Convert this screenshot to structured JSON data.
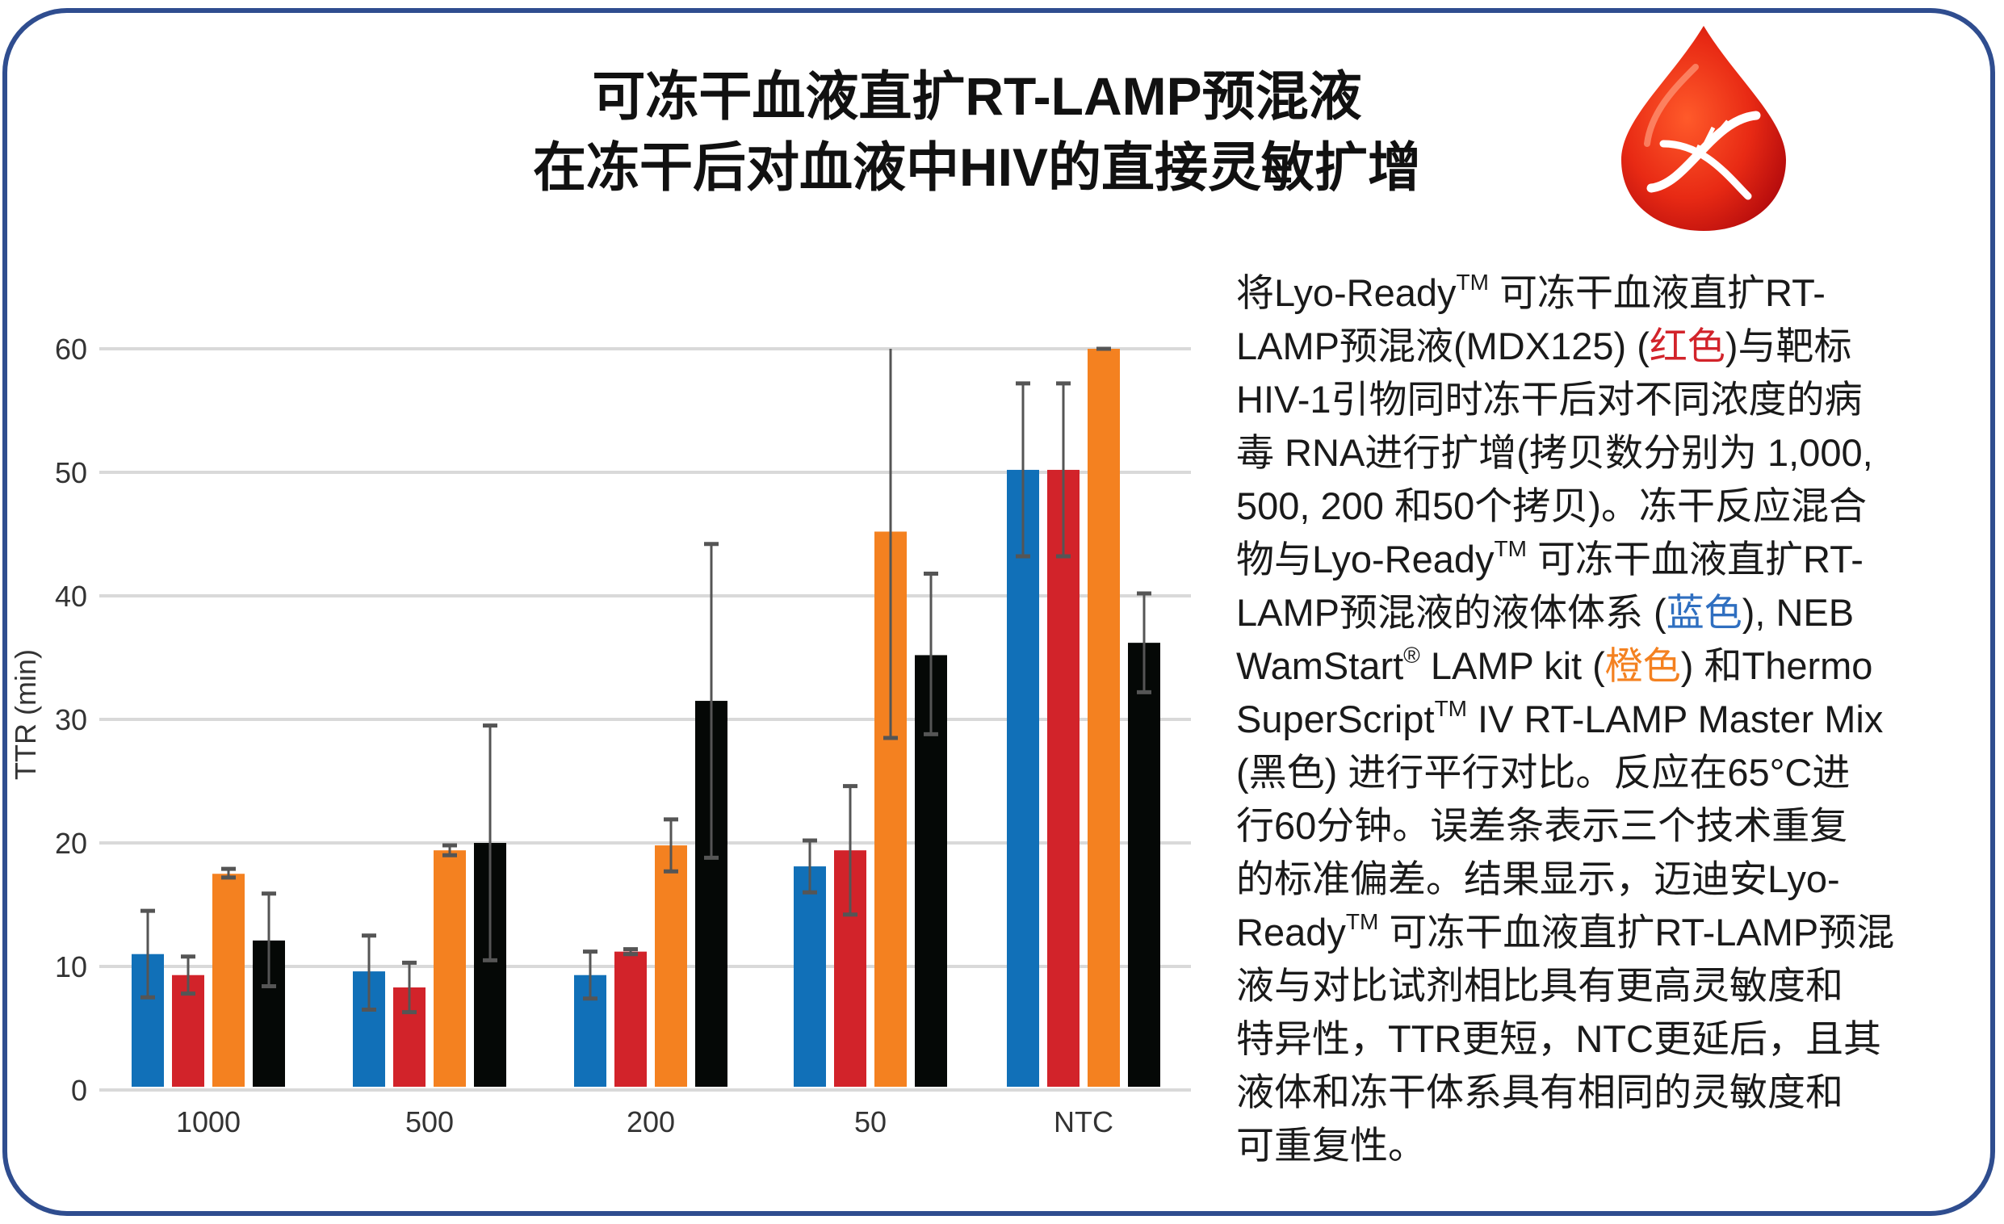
{
  "title": {
    "line1": "可冻干血液直扩RT-LAMP预混液",
    "line2": "在冻干后对血液中HIV的直接灵敏扩增"
  },
  "icon": "blood-drop-dna-icon",
  "colors": {
    "frame": "#2f4d8f",
    "blue": "#1170b8",
    "red": "#d2232a",
    "orange": "#f48120",
    "black": "#050806",
    "error_bar": "#555555",
    "grid": "#d9d9d9"
  },
  "chart_data": {
    "type": "bar",
    "ylabel": "TTR (min)",
    "xlabel": "",
    "ylim": [
      0,
      60
    ],
    "yticks": [
      "0",
      "10",
      "20",
      "30",
      "40",
      "50",
      "60"
    ],
    "grid": true,
    "categories": [
      "1000",
      "500",
      "200",
      "50",
      "NTC"
    ],
    "series": [
      {
        "color": "#1170b8",
        "values": [
          11.0,
          9.6,
          9.3,
          18.1,
          50.2
        ],
        "err_low": [
          7.5,
          6.5,
          7.4,
          16.0,
          43.2
        ],
        "err_high": [
          14.5,
          12.5,
          11.2,
          20.2,
          57.2
        ]
      },
      {
        "color": "#d2232a",
        "values": [
          9.3,
          8.3,
          11.2,
          19.4,
          50.2
        ],
        "err_low": [
          7.8,
          6.3,
          11.0,
          14.2,
          43.2
        ],
        "err_high": [
          10.8,
          10.3,
          11.4,
          24.6,
          57.2
        ]
      },
      {
        "color": "#f48120",
        "values": [
          17.5,
          19.4,
          19.8,
          45.2,
          60.0
        ],
        "err_low": [
          17.2,
          19.0,
          17.7,
          28.5,
          60.0
        ],
        "err_high": [
          17.9,
          19.8,
          21.9,
          61.9,
          60.0
        ]
      },
      {
        "color": "#050806",
        "values": [
          12.1,
          20.0,
          31.5,
          35.2,
          36.2
        ],
        "err_low": [
          8.4,
          10.5,
          18.8,
          28.8,
          32.2
        ],
        "err_high": [
          15.9,
          29.5,
          44.2,
          41.8,
          40.2
        ]
      }
    ]
  },
  "paragraph": [
    [
      {
        "t": "将Lyo-Ready"
      },
      {
        "t": "TM",
        "sup": true
      },
      {
        "t": " 可冻干血液直扩RT-"
      }
    ],
    [
      {
        "t": "LAMP预混液(MDX125) ("
      },
      {
        "t": "红色",
        "c": "#d2232a"
      },
      {
        "t": ")与靶标"
      }
    ],
    [
      {
        "t": "HIV-1引物同时冻干后对不同浓度的病"
      }
    ],
    [
      {
        "t": "毒 RNA进行扩增(拷贝数分别为 1,000,"
      }
    ],
    [
      {
        "t": "500, 200 和50个拷贝)。冻干反应混合"
      }
    ],
    [
      {
        "t": "物与Lyo-Ready"
      },
      {
        "t": "TM",
        "sup": true
      },
      {
        "t": " 可冻干血液直扩RT-"
      }
    ],
    [
      {
        "t": "LAMP预混液的液体体系 ("
      },
      {
        "t": "蓝色",
        "c": "#2f6fc0"
      },
      {
        "t": "), NEB"
      }
    ],
    [
      {
        "t": "WamStart"
      },
      {
        "t": "®",
        "sup": true
      },
      {
        "t": " LAMP kit ("
      },
      {
        "t": "橙色",
        "c": "#f48120"
      },
      {
        "t": ") 和Thermo"
      }
    ],
    [
      {
        "t": "SuperScript"
      },
      {
        "t": "TM",
        "sup": true
      },
      {
        "t": " IV RT-LAMP Master Mix"
      }
    ],
    [
      {
        "t": "(黑色) 进行平行对比。反应在65°C进"
      }
    ],
    [
      {
        "t": "行60分钟。误差条表示三个技术重复"
      }
    ],
    [
      {
        "t": "的标准偏差。结果显示，迈迪安Lyo-"
      }
    ],
    [
      {
        "t": "Ready"
      },
      {
        "t": "TM",
        "sup": true
      },
      {
        "t": " 可冻干血液直扩RT-LAMP预混"
      }
    ],
    [
      {
        "t": "液与对比试剂相比具有更高灵敏度和"
      }
    ],
    [
      {
        "t": "特异性，TTR更短，NTC更延后，且其"
      }
    ],
    [
      {
        "t": "液体和冻干体系具有相同的灵敏度和"
      }
    ],
    [
      {
        "t": "可重复性。"
      }
    ]
  ]
}
